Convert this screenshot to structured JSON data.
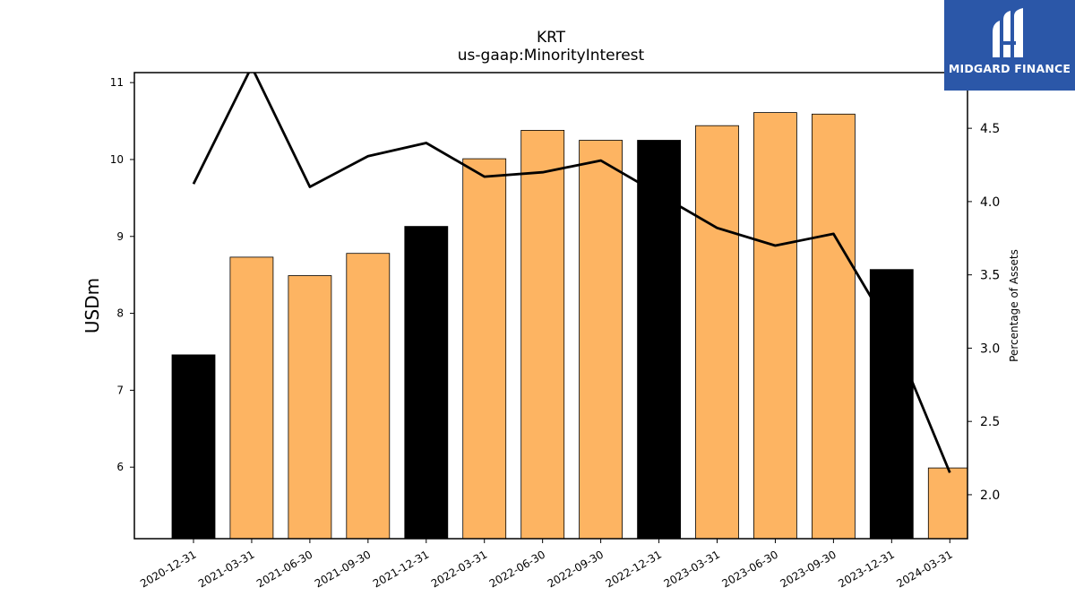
{
  "chart_data": {
    "type": "bar",
    "title": "KRT",
    "subtitle": "us-gaap:MinorityInterest",
    "ylabel": "USDm",
    "y2label": "Percentage of Assets",
    "ylim": [
      5.07,
      11.13
    ],
    "y2lim": [
      1.7,
      4.88
    ],
    "yticks": [
      "6",
      "7",
      "8",
      "9",
      "10",
      "11"
    ],
    "y2ticks": [
      "2.0",
      "2.5",
      "3.0",
      "3.5",
      "4.0",
      "4.5"
    ],
    "categories": [
      "2020-12-31",
      "2021-03-31",
      "2021-06-30",
      "2021-09-30",
      "2021-12-31",
      "2022-03-31",
      "2022-06-30",
      "2022-09-30",
      "2022-12-31",
      "2023-03-31",
      "2023-06-30",
      "2023-09-30",
      "2023-12-31",
      "2024-03-31"
    ],
    "series": [
      {
        "type": "bar",
        "axis": "left",
        "values": [
          7.46,
          8.73,
          8.49,
          8.78,
          9.13,
          10.01,
          10.38,
          10.25,
          10.25,
          10.44,
          10.61,
          10.59,
          8.57,
          5.99
        ],
        "colors": [
          "#000000",
          "#fdb462",
          "#fdb462",
          "#fdb462",
          "#000000",
          "#fdb462",
          "#fdb462",
          "#fdb462",
          "#000000",
          "#fdb462",
          "#fdb462",
          "#fdb462",
          "#000000",
          "#fdb462"
        ]
      },
      {
        "type": "line",
        "axis": "right",
        "color": "#000000",
        "values": [
          4.12,
          4.92,
          4.1,
          4.31,
          4.4,
          4.17,
          4.2,
          4.28,
          4.05,
          3.82,
          3.7,
          3.78,
          3.11,
          2.15
        ]
      }
    ],
    "grid": false,
    "legend": "none"
  },
  "logo": {
    "text": "MIDGARD FINANCE",
    "background": "#2b57a8"
  }
}
